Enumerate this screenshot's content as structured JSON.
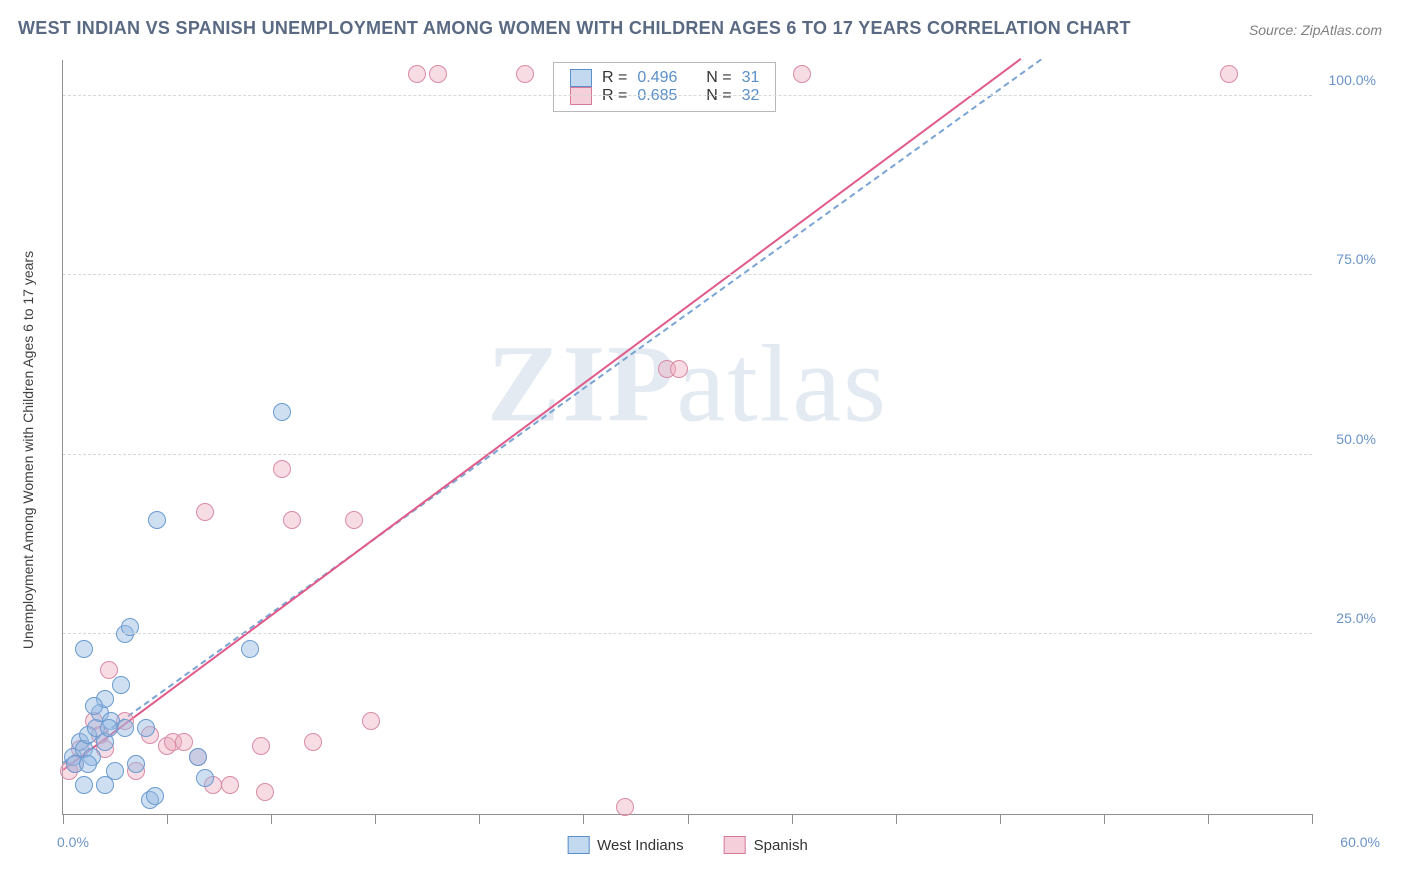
{
  "title": "WEST INDIAN VS SPANISH UNEMPLOYMENT AMONG WOMEN WITH CHILDREN AGES 6 TO 17 YEARS CORRELATION CHART",
  "source": "Source: ZipAtlas.com",
  "ylabel": "Unemployment Among Women with Children Ages 6 to 17 years",
  "watermark_a": "ZIP",
  "watermark_b": "atlas",
  "chart": {
    "type": "scatter",
    "xlim": [
      0,
      60
    ],
    "ylim": [
      0,
      105
    ],
    "x_min_label": "0.0%",
    "x_max_label": "60.0%",
    "x_ticks": [
      0,
      5,
      10,
      15,
      20,
      25,
      30,
      35,
      40,
      45,
      50,
      55,
      60
    ],
    "y_ticks": [
      25,
      50,
      75,
      100
    ],
    "y_tick_labels": [
      "25.0%",
      "50.0%",
      "75.0%",
      "100.0%"
    ],
    "grid_color": "#d8d8d8",
    "background_color": "#ffffff",
    "marker_radius": 9,
    "series": {
      "blue": {
        "label": "West Indians",
        "fill": "rgba(146,185,226,0.45)",
        "stroke": "#6a9bd0",
        "R_label": "R =",
        "R": "0.496",
        "N_label": "N =",
        "N": "31",
        "points": [
          [
            0.5,
            8
          ],
          [
            0.6,
            7
          ],
          [
            0.8,
            10
          ],
          [
            1.0,
            9
          ],
          [
            1.2,
            11
          ],
          [
            1.4,
            8
          ],
          [
            1.6,
            12
          ],
          [
            1.2,
            7
          ],
          [
            1.8,
            14
          ],
          [
            2.0,
            16
          ],
          [
            2.3,
            13
          ],
          [
            2.0,
            10
          ],
          [
            2.8,
            18
          ],
          [
            3.0,
            12
          ],
          [
            1.0,
            23
          ],
          [
            3.5,
            7
          ],
          [
            4.0,
            12
          ],
          [
            3.0,
            25
          ],
          [
            3.2,
            26
          ],
          [
            4.5,
            41
          ],
          [
            6.5,
            8
          ],
          [
            6.8,
            5
          ],
          [
            9.0,
            23
          ],
          [
            10.5,
            56
          ],
          [
            1.0,
            4
          ],
          [
            2.5,
            6
          ],
          [
            2.0,
            4
          ],
          [
            4.2,
            2
          ],
          [
            4.4,
            2.5
          ],
          [
            1.5,
            15
          ],
          [
            2.2,
            12
          ]
        ],
        "trend": {
          "x1": 0,
          "y1": 7,
          "x2": 47,
          "y2": 105,
          "dashed": true
        }
      },
      "pink": {
        "label": "Spanish",
        "fill": "rgba(236,168,188,0.40)",
        "stroke": "#d98ba6",
        "R_label": "R =",
        "R": "0.685",
        "N_label": "N =",
        "N": "32",
        "points": [
          [
            0.3,
            6
          ],
          [
            0.6,
            7
          ],
          [
            0.8,
            9
          ],
          [
            1.5,
            13
          ],
          [
            1.8,
            11
          ],
          [
            2.0,
            9
          ],
          [
            2.2,
            20
          ],
          [
            3.0,
            13
          ],
          [
            3.5,
            6
          ],
          [
            4.2,
            11
          ],
          [
            5.0,
            9.5
          ],
          [
            5.3,
            10
          ],
          [
            5.8,
            10
          ],
          [
            6.5,
            8
          ],
          [
            6.8,
            42
          ],
          [
            7.2,
            4
          ],
          [
            8.0,
            4
          ],
          [
            9.7,
            3
          ],
          [
            9.5,
            9.5
          ],
          [
            10.5,
            48
          ],
          [
            11.0,
            41
          ],
          [
            12.0,
            10
          ],
          [
            14.0,
            41
          ],
          [
            14.8,
            13
          ],
          [
            17.0,
            103
          ],
          [
            18.0,
            103
          ],
          [
            22.2,
            103
          ],
          [
            27.0,
            1
          ],
          [
            29.0,
            62
          ],
          [
            29.6,
            62
          ],
          [
            35.5,
            103
          ],
          [
            56.0,
            103
          ]
        ],
        "trend": {
          "x1": 0,
          "y1": 6,
          "x2": 46,
          "y2": 105,
          "dashed": false
        }
      }
    }
  },
  "legend": {
    "blue": "West Indians",
    "pink": "Spanish"
  }
}
